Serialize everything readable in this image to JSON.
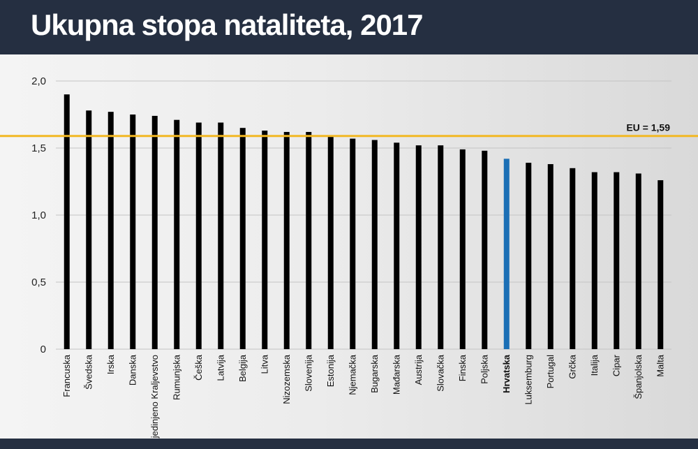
{
  "header": {
    "title": "Ukupna stopa nataliteta, 2017"
  },
  "colors": {
    "bar": "#000000",
    "highlight": "#1b6fb5",
    "reference_line": "#f2b824",
    "grid": "#c4c4c4",
    "header_bg": "#252f41"
  },
  "chart_data": {
    "type": "bar",
    "categories": [
      "Francuska",
      "Švedska",
      "Irska",
      "Danska",
      "Ujedinjeno Kraljevstvo",
      "Rumunjska",
      "Češka",
      "Latvija",
      "Belgija",
      "Litva",
      "Nizozemska",
      "Slovenija",
      "Estonija",
      "Njemačka",
      "Bugarska",
      "Mađarska",
      "Austrija",
      "Slovačka",
      "Finska",
      "Poljska",
      "Hrvatska",
      "Luksemburg",
      "Portugal",
      "Grčka",
      "Italija",
      "Cipar",
      "Španjolska",
      "Malta"
    ],
    "values": [
      1.9,
      1.78,
      1.77,
      1.75,
      1.74,
      1.71,
      1.69,
      1.69,
      1.65,
      1.63,
      1.62,
      1.62,
      1.59,
      1.57,
      1.56,
      1.54,
      1.52,
      1.52,
      1.49,
      1.48,
      1.42,
      1.39,
      1.38,
      1.35,
      1.32,
      1.32,
      1.31,
      1.26
    ],
    "highlight_category": "Hrvatska",
    "ylim": [
      0,
      2.0
    ],
    "yticks": [
      0,
      0.5,
      1.0,
      1.5,
      2.0
    ],
    "ytick_labels": [
      "0",
      "0,5",
      "1,0",
      "1,5",
      "2,0"
    ],
    "grid": true,
    "reference_line": {
      "value": 1.59,
      "label": "EU = 1,59"
    },
    "title": "Ukupna stopa nataliteta, 2017",
    "xlabel": "",
    "ylabel": ""
  }
}
